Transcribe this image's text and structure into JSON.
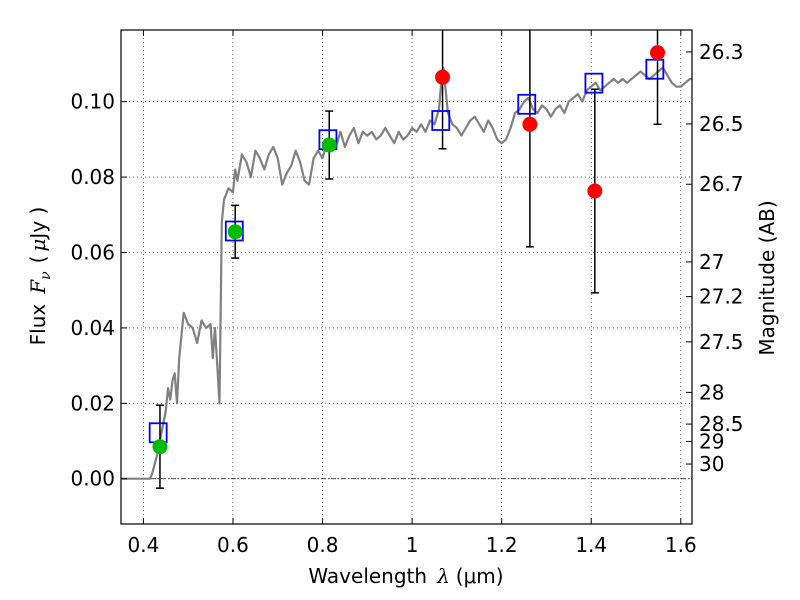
{
  "chart_data": {
    "type": "scatter",
    "xlabel_prefix": "Wavelength",
    "xlabel_symbol": "λ",
    "xlabel_unit": "(μm)",
    "ylabel_prefix": "Flux",
    "ylabel_symbol": "F",
    "ylabel_subscript": "ν",
    "ylabel_unit_open": "(",
    "ylabel_unit_mu": "μ",
    "ylabel_unit_close": "Jy )",
    "y2label": "Magnitude (AB)",
    "xlim": [
      0.35,
      1.625
    ],
    "ylim": [
      -0.012,
      0.119
    ],
    "xticks": [
      0.4,
      0.6,
      0.8,
      1.0,
      1.2,
      1.4,
      1.6
    ],
    "xtick_labels": [
      "0.4",
      "0.6",
      "0.8",
      "1",
      "1.2",
      "1.4",
      "1.6"
    ],
    "yticks": [
      0.0,
      0.02,
      0.04,
      0.06,
      0.08,
      0.1
    ],
    "ytick_labels": [
      "0.00",
      "0.02",
      "0.04",
      "0.06",
      "0.08",
      "0.10"
    ],
    "y2ticks": [
      {
        "flux": 0.1132,
        "label": "26.3"
      },
      {
        "flux": 0.0941,
        "label": "26.5"
      },
      {
        "flux": 0.0781,
        "label": "26.7"
      },
      {
        "flux": 0.0575,
        "label": "27"
      },
      {
        "flux": 0.0483,
        "label": "27.2"
      },
      {
        "flux": 0.0363,
        "label": "27.5"
      },
      {
        "flux": 0.0229,
        "label": "28"
      },
      {
        "flux": 0.0145,
        "label": "28.5"
      },
      {
        "flux": 0.0099,
        "label": "29"
      },
      {
        "flux": 0.0039,
        "label": "30"
      }
    ],
    "grid": true,
    "zero_line": true,
    "colors": {
      "model": "#808080",
      "synthetic": "#0000ff",
      "detection": "#00bb00",
      "nondetection": "#ff0000",
      "errorbar": "#000000"
    },
    "model_sed": [
      [
        0.35,
        0.0
      ],
      [
        0.4,
        0.0
      ],
      [
        0.415,
        0.0
      ],
      [
        0.42,
        0.0015
      ],
      [
        0.43,
        0.006
      ],
      [
        0.44,
        0.012
      ],
      [
        0.45,
        0.018
      ],
      [
        0.455,
        0.024
      ],
      [
        0.46,
        0.021
      ],
      [
        0.465,
        0.026
      ],
      [
        0.47,
        0.028
      ],
      [
        0.475,
        0.02
      ],
      [
        0.48,
        0.032
      ],
      [
        0.49,
        0.044
      ],
      [
        0.5,
        0.041
      ],
      [
        0.51,
        0.04
      ],
      [
        0.52,
        0.036
      ],
      [
        0.53,
        0.042
      ],
      [
        0.54,
        0.04
      ],
      [
        0.55,
        0.041
      ],
      [
        0.555,
        0.032
      ],
      [
        0.56,
        0.04
      ],
      [
        0.565,
        0.03
      ],
      [
        0.57,
        0.02
      ],
      [
        0.575,
        0.068
      ],
      [
        0.58,
        0.074
      ],
      [
        0.59,
        0.077
      ],
      [
        0.6,
        0.076
      ],
      [
        0.605,
        0.082
      ],
      [
        0.61,
        0.079
      ],
      [
        0.62,
        0.086
      ],
      [
        0.63,
        0.084
      ],
      [
        0.64,
        0.08
      ],
      [
        0.65,
        0.087
      ],
      [
        0.66,
        0.085
      ],
      [
        0.67,
        0.082
      ],
      [
        0.68,
        0.086
      ],
      [
        0.69,
        0.088
      ],
      [
        0.7,
        0.085
      ],
      [
        0.71,
        0.078
      ],
      [
        0.72,
        0.081
      ],
      [
        0.73,
        0.083
      ],
      [
        0.74,
        0.087
      ],
      [
        0.75,
        0.084
      ],
      [
        0.76,
        0.079
      ],
      [
        0.77,
        0.078
      ],
      [
        0.78,
        0.085
      ],
      [
        0.79,
        0.087
      ],
      [
        0.8,
        0.085
      ],
      [
        0.81,
        0.089
      ],
      [
        0.82,
        0.087
      ],
      [
        0.83,
        0.088
      ],
      [
        0.84,
        0.092
      ],
      [
        0.85,
        0.088
      ],
      [
        0.86,
        0.091
      ],
      [
        0.87,
        0.093
      ],
      [
        0.88,
        0.089
      ],
      [
        0.89,
        0.092
      ],
      [
        0.9,
        0.091
      ],
      [
        0.91,
        0.092
      ],
      [
        0.92,
        0.09
      ],
      [
        0.93,
        0.091
      ],
      [
        0.94,
        0.093
      ],
      [
        0.95,
        0.091
      ],
      [
        0.96,
        0.089
      ],
      [
        0.97,
        0.092
      ],
      [
        0.98,
        0.09
      ],
      [
        0.99,
        0.091
      ],
      [
        1.0,
        0.093
      ],
      [
        1.01,
        0.092
      ],
      [
        1.02,
        0.094
      ],
      [
        1.03,
        0.092
      ],
      [
        1.04,
        0.095
      ],
      [
        1.05,
        0.094
      ],
      [
        1.06,
        0.098
      ],
      [
        1.065,
        0.105
      ],
      [
        1.07,
        0.109
      ],
      [
        1.075,
        0.103
      ],
      [
        1.08,
        0.097
      ],
      [
        1.09,
        0.094
      ],
      [
        1.1,
        0.093
      ],
      [
        1.11,
        0.091
      ],
      [
        1.12,
        0.093
      ],
      [
        1.13,
        0.095
      ],
      [
        1.14,
        0.096
      ],
      [
        1.15,
        0.094
      ],
      [
        1.16,
        0.092
      ],
      [
        1.17,
        0.095
      ],
      [
        1.18,
        0.093
      ],
      [
        1.19,
        0.09
      ],
      [
        1.2,
        0.089
      ],
      [
        1.21,
        0.09
      ],
      [
        1.22,
        0.093
      ],
      [
        1.23,
        0.097
      ],
      [
        1.24,
        0.098
      ],
      [
        1.25,
        0.1
      ],
      [
        1.26,
        0.101
      ],
      [
        1.27,
        0.098
      ],
      [
        1.28,
        0.097
      ],
      [
        1.29,
        0.099
      ],
      [
        1.3,
        0.098
      ],
      [
        1.31,
        0.096
      ],
      [
        1.32,
        0.098
      ],
      [
        1.33,
        0.099
      ],
      [
        1.34,
        0.097
      ],
      [
        1.35,
        0.1
      ],
      [
        1.36,
        0.101
      ],
      [
        1.37,
        0.102
      ],
      [
        1.38,
        0.1
      ],
      [
        1.39,
        0.103
      ],
      [
        1.4,
        0.104
      ],
      [
        1.41,
        0.105
      ],
      [
        1.42,
        0.103
      ],
      [
        1.43,
        0.104
      ],
      [
        1.44,
        0.105
      ],
      [
        1.45,
        0.106
      ],
      [
        1.46,
        0.105
      ],
      [
        1.47,
        0.106
      ],
      [
        1.48,
        0.105
      ],
      [
        1.49,
        0.106
      ],
      [
        1.5,
        0.107
      ],
      [
        1.51,
        0.108
      ],
      [
        1.52,
        0.107
      ],
      [
        1.53,
        0.106
      ],
      [
        1.54,
        0.107
      ],
      [
        1.55,
        0.108
      ],
      [
        1.56,
        0.109
      ],
      [
        1.57,
        0.107
      ],
      [
        1.58,
        0.105
      ],
      [
        1.59,
        0.104
      ],
      [
        1.6,
        0.104
      ],
      [
        1.61,
        0.105
      ],
      [
        1.62,
        0.106
      ],
      [
        1.625,
        0.106
      ]
    ],
    "synthetic_points": [
      {
        "x": 0.433,
        "y": 0.0122
      },
      {
        "x": 0.603,
        "y": 0.0657
      },
      {
        "x": 0.812,
        "y": 0.0899
      },
      {
        "x": 1.064,
        "y": 0.095
      },
      {
        "x": 1.256,
        "y": 0.0993
      },
      {
        "x": 1.406,
        "y": 0.1049
      },
      {
        "x": 1.542,
        "y": 0.1086
      }
    ],
    "observed_points": [
      {
        "x": 0.437,
        "y": 0.0085,
        "err_low": 0.011,
        "err_high": 0.011,
        "status": "detection"
      },
      {
        "x": 0.605,
        "y": 0.0655,
        "err_low": 0.007,
        "err_high": 0.007,
        "status": "detection"
      },
      {
        "x": 0.815,
        "y": 0.0885,
        "err_low": 0.009,
        "err_high": 0.009,
        "status": "detection"
      },
      {
        "x": 1.068,
        "y": 0.1065,
        "err_low": 0.019,
        "err_high": 0.0125,
        "status": "nondetection"
      },
      {
        "x": 1.263,
        "y": 0.094,
        "err_low": 0.0325,
        "err_high": 0.025,
        "status": "nondetection"
      },
      {
        "x": 1.408,
        "y": 0.0763,
        "err_low": 0.027,
        "err_high": 0.027,
        "status": "nondetection"
      },
      {
        "x": 1.548,
        "y": 0.113,
        "err_low": 0.019,
        "err_high": 0.006,
        "status": "nondetection"
      }
    ]
  }
}
